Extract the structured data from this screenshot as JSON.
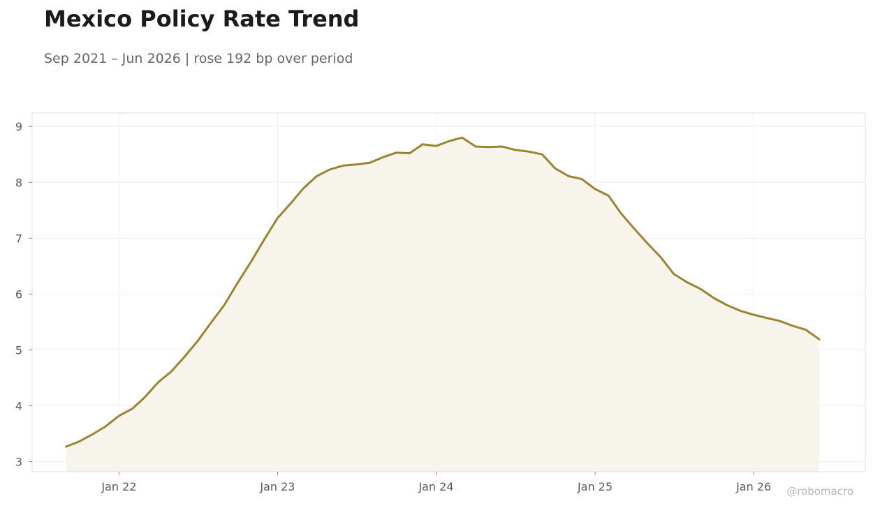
{
  "header": {
    "title": "Mexico Policy Rate Trend",
    "subtitle": "Sep 2021 – Jun 2026 | rose 192 bp over period"
  },
  "credit": "@robomacro",
  "colors": {
    "line": "#9a8530",
    "fill": "#f7f4ec",
    "grid": "#efefef",
    "frame": "#dcdcdc"
  },
  "chart_data": {
    "type": "area",
    "x_start": "2021-09",
    "x_step": "1 month",
    "x_ticks": [
      {
        "label": "Jan 22",
        "date": "2022-01"
      },
      {
        "label": "Jan 23",
        "date": "2023-01"
      },
      {
        "label": "Jan 24",
        "date": "2024-01"
      },
      {
        "label": "Jan 25",
        "date": "2025-01"
      },
      {
        "label": "Jan 26",
        "date": "2026-01"
      }
    ],
    "y_ticks": [
      3,
      4,
      5,
      6,
      7,
      8,
      9
    ],
    "ylim": [
      2.82,
      9.24
    ],
    "xlim": [
      "2021-06-15",
      "2026-09-15"
    ],
    "grid": true,
    "values": [
      3.27,
      3.36,
      3.49,
      3.63,
      3.82,
      3.95,
      4.15,
      4.42,
      4.61,
      4.88,
      5.16,
      5.49,
      5.81,
      6.2,
      6.58,
      6.97,
      7.36,
      7.63,
      7.89,
      8.11,
      8.23,
      8.3,
      8.32,
      8.35,
      8.45,
      8.53,
      8.52,
      8.68,
      8.65,
      8.74,
      8.8,
      8.64,
      8.63,
      8.64,
      8.58,
      8.55,
      8.5,
      8.25,
      8.11,
      8.06,
      7.88,
      7.76,
      7.45,
      7.17,
      6.91,
      6.66,
      6.36,
      6.21,
      6.09,
      5.93,
      5.8,
      5.7,
      5.63,
      5.57,
      5.52,
      5.43,
      5.36,
      5.19
    ]
  }
}
